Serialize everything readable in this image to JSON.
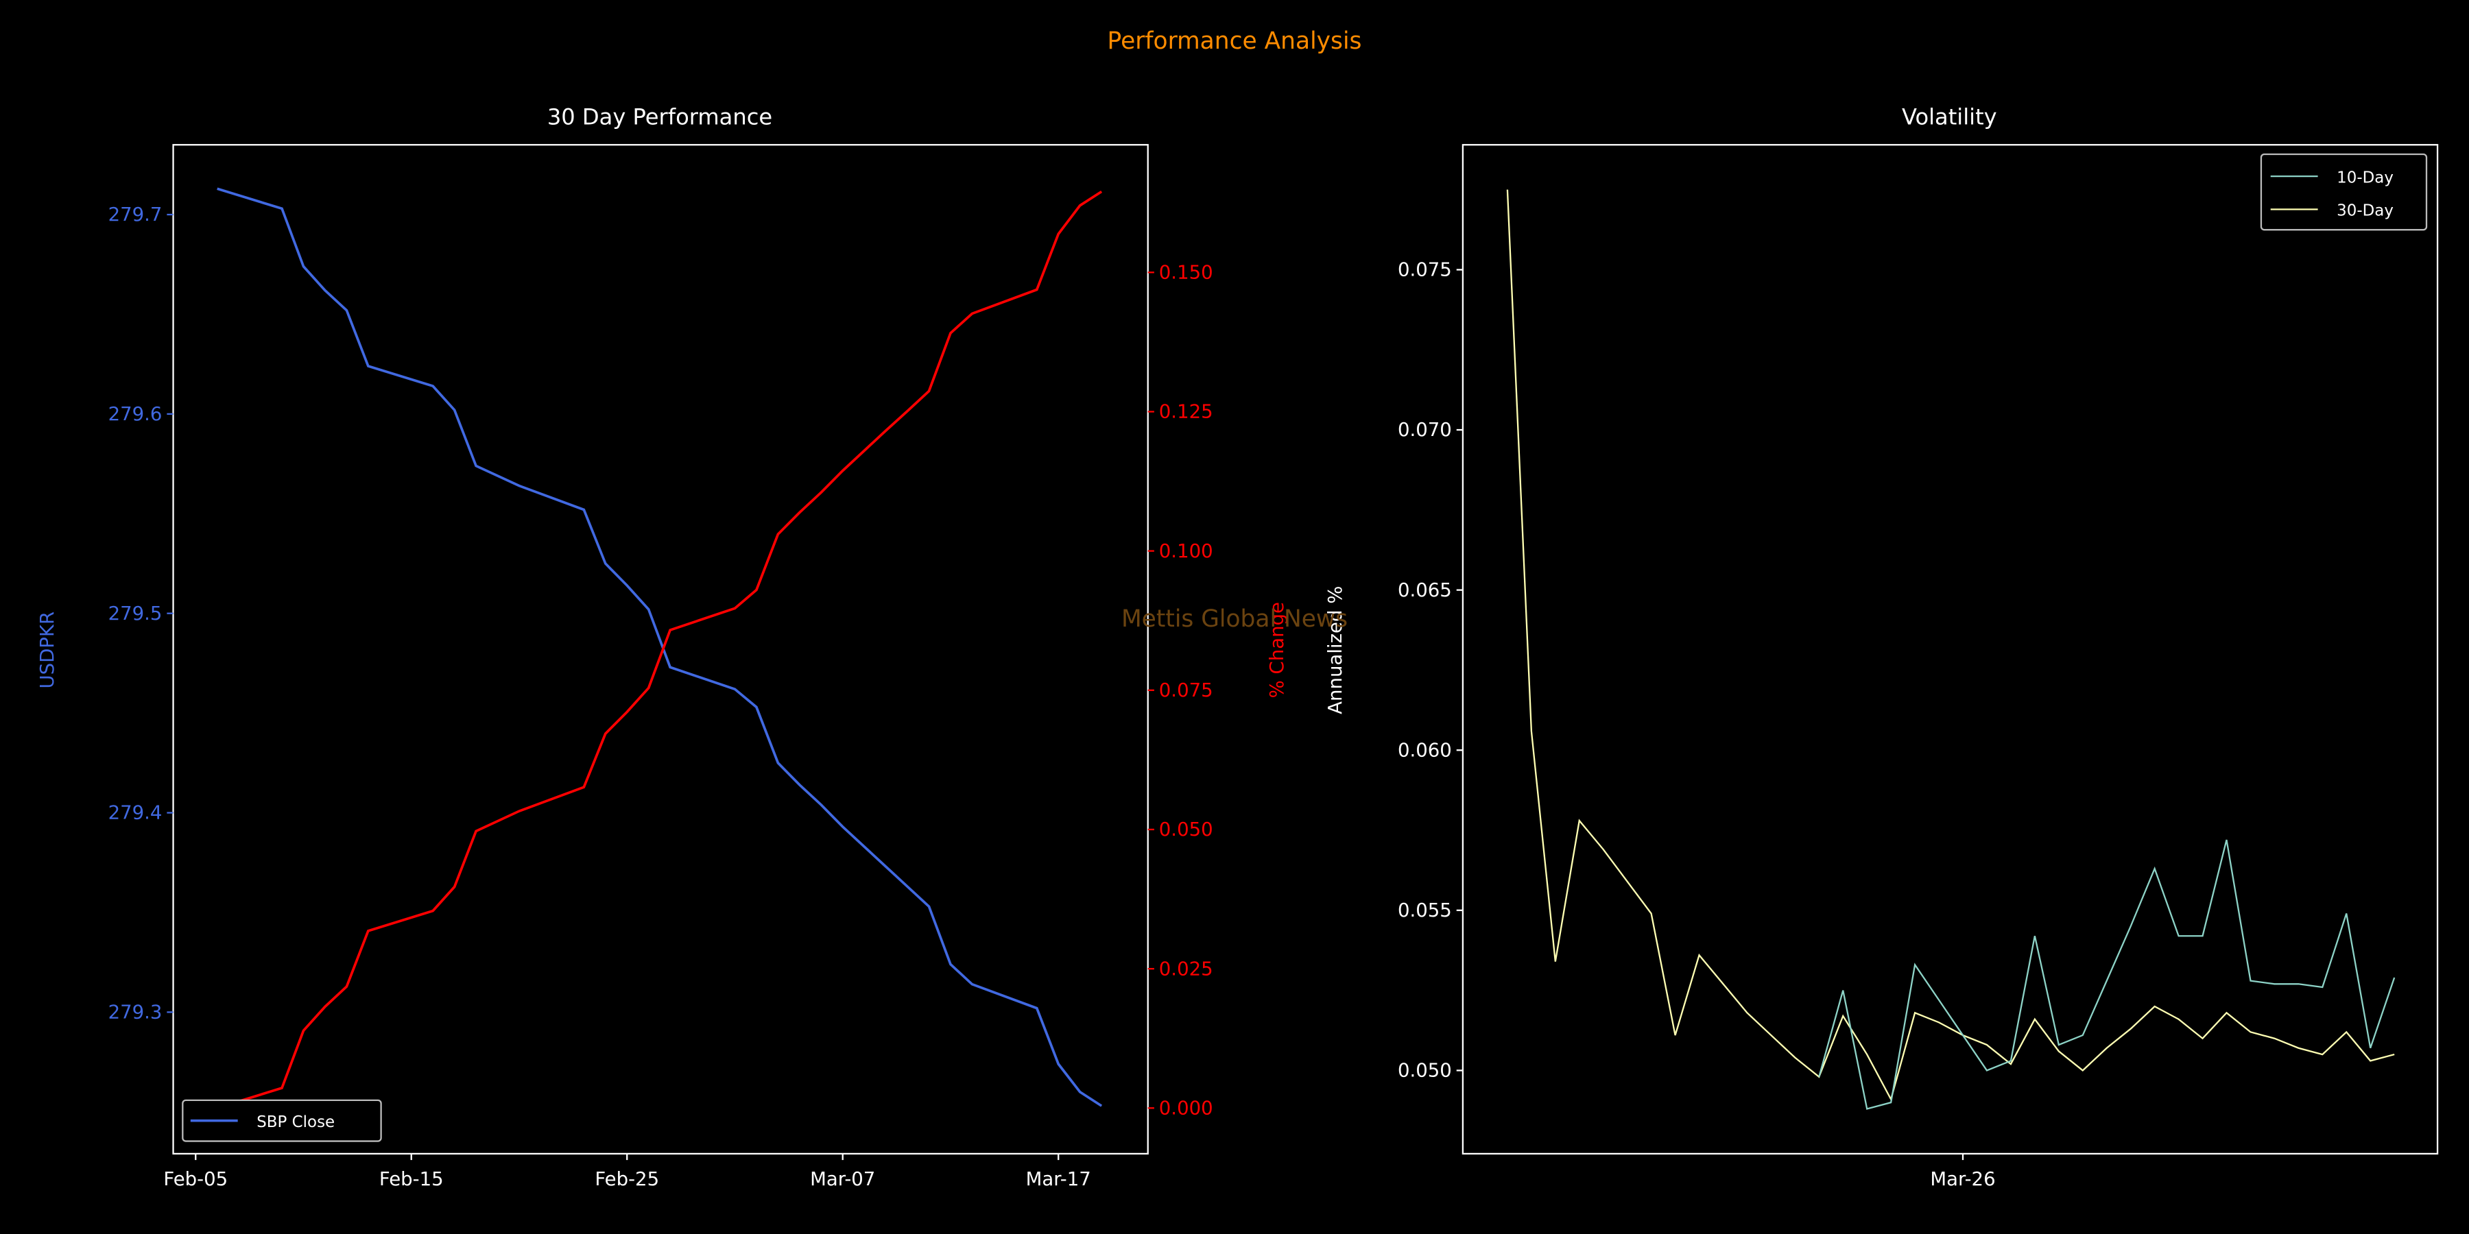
{
  "figure_title": "Performance Analysis",
  "watermark": "Mettis Global News",
  "colors": {
    "title": "#ff8c00",
    "price": "#4169e1",
    "pct": "#ff0000",
    "vol10": "#8dd3c7",
    "vol30": "#ffffb3",
    "watermark": "#6b4310"
  },
  "chart_data": [
    {
      "type": "line",
      "title": "30 Day Performance",
      "xlabel": "",
      "ylabel": "USDPKR",
      "ylabel_right": "% Change",
      "x_unit": "days since Feb-05",
      "xlim": [
        -1.04,
        44.15
      ],
      "ylim": [
        279.229,
        279.735
      ],
      "ylim_right": [
        -0.0082,
        0.1729
      ],
      "xticks": [
        {
          "at": 0,
          "label": "Feb-05"
        },
        {
          "at": 10,
          "label": "Feb-15"
        },
        {
          "at": 20,
          "label": "Feb-25"
        },
        {
          "at": 30,
          "label": "Mar-07"
        },
        {
          "at": 40,
          "label": "Mar-17"
        }
      ],
      "yticks": [
        "279.3",
        "279.4",
        "279.5",
        "279.6",
        "279.7"
      ],
      "yticks_right": [
        "0.000",
        "0.025",
        "0.050",
        "0.075",
        "0.100",
        "0.125",
        "0.150"
      ],
      "legend": {
        "entries": [
          "SBP Close"
        ],
        "placement": "lower-left"
      },
      "x": [
        1,
        4,
        5,
        6,
        7,
        8,
        11,
        12,
        13,
        15,
        18,
        19,
        20,
        21,
        22,
        25,
        26,
        27,
        28,
        29,
        30,
        31,
        32,
        33,
        34,
        35,
        36,
        39,
        40,
        41,
        42
      ],
      "series": [
        {
          "name": "SBP Close",
          "axis": "left",
          "values": [
            279.713,
            279.703,
            279.674,
            279.662,
            279.652,
            279.624,
            279.614,
            279.602,
            279.574,
            279.564,
            279.552,
            279.525,
            279.514,
            279.502,
            279.473,
            279.462,
            279.453,
            279.425,
            279.414,
            279.404,
            279.393,
            279.383,
            279.373,
            279.363,
            279.353,
            279.324,
            279.314,
            279.302,
            279.274,
            279.26,
            279.253
          ]
        },
        {
          "name": "% Change",
          "axis": "right",
          "values": [
            0.0,
            0.0036,
            0.0139,
            0.0182,
            0.0218,
            0.0318,
            0.0354,
            0.0397,
            0.0497,
            0.0533,
            0.0576,
            0.0672,
            0.0711,
            0.0754,
            0.0858,
            0.0897,
            0.093,
            0.103,
            0.1069,
            0.1105,
            0.1144,
            0.118,
            0.1216,
            0.1251,
            0.1287,
            0.1391,
            0.1426,
            0.1469,
            0.1569,
            0.162,
            0.1645
          ]
        }
      ]
    },
    {
      "type": "line",
      "title": "Volatility",
      "xlabel": "",
      "ylabel": "Annualized %",
      "xlim": [
        -1.86,
        38.8
      ],
      "ylim": [
        0.0474,
        0.0789
      ],
      "xticks": [
        {
          "at": 19,
          "label": "Mar-26"
        }
      ],
      "yticks": [
        "0.050",
        "0.055",
        "0.060",
        "0.065",
        "0.070",
        "0.075"
      ],
      "legend": {
        "entries": [
          "10-Day",
          "30-Day"
        ],
        "placement": "upper-right"
      },
      "series": [
        {
          "name": "10-Day",
          "x": [
            13,
            14,
            15,
            16,
            17,
            18,
            19,
            20,
            21,
            22,
            23,
            24,
            25,
            26,
            27,
            28,
            29,
            30,
            31,
            32,
            33,
            34,
            35,
            36,
            37
          ],
          "values": [
            0.0498,
            0.0525,
            0.0488,
            0.049,
            0.0533,
            0.0522,
            0.0511,
            0.05,
            0.0503,
            0.0542,
            0.0508,
            0.0511,
            0.0528,
            0.0545,
            0.0563,
            0.0542,
            0.0542,
            0.0572,
            0.0528,
            0.0527,
            0.0527,
            0.0526,
            0.0549,
            0.0507,
            0.0529
          ]
        },
        {
          "name": "30-Day",
          "x": [
            0,
            1,
            2,
            3,
            4,
            5,
            6,
            7,
            8,
            9,
            10,
            11,
            12,
            13,
            14,
            15,
            16,
            17,
            18,
            19,
            20,
            21,
            22,
            23,
            24,
            25,
            26,
            27,
            28,
            29,
            30,
            31,
            32,
            33,
            34,
            35,
            36,
            37
          ],
          "values": [
            0.0775,
            0.0606,
            0.0534,
            0.0578,
            0.0569,
            0.0559,
            0.0549,
            0.0511,
            0.0536,
            0.0527,
            0.0518,
            0.0511,
            0.0504,
            0.0498,
            0.0517,
            0.0505,
            0.0491,
            0.0518,
            0.0515,
            0.0511,
            0.0508,
            0.0502,
            0.0516,
            0.0506,
            0.05,
            0.0507,
            0.0513,
            0.052,
            0.0516,
            0.051,
            0.0518,
            0.0512,
            0.051,
            0.0507,
            0.0505,
            0.0512,
            0.0503,
            0.0505
          ]
        }
      ]
    }
  ]
}
